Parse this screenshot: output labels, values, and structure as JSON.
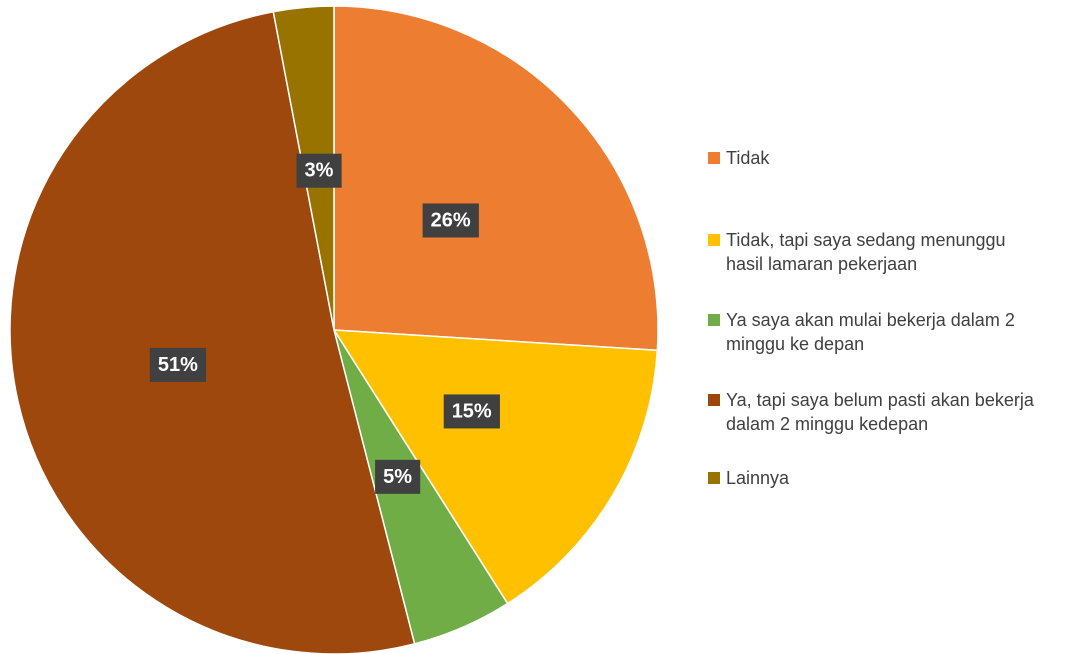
{
  "chart_data": {
    "type": "pie",
    "categories": [
      "Tidak",
      "Tidak, tapi saya sedang menunggu hasil lamaran pekerjaan",
      "Ya saya akan mulai bekerja dalam 2 minggu ke depan",
      "Ya, tapi saya belum pasti akan bekerja dalam 2 minggu kedepan",
      "Lainnya"
    ],
    "values": [
      26,
      15,
      5,
      51,
      3
    ],
    "value_labels": [
      "26%",
      "15%",
      "5%",
      "51%",
      "3%"
    ],
    "colors": [
      "#ED7D31",
      "#FFC000",
      "#70AD47",
      "#9E480E",
      "#997300"
    ],
    "legend": "right"
  }
}
